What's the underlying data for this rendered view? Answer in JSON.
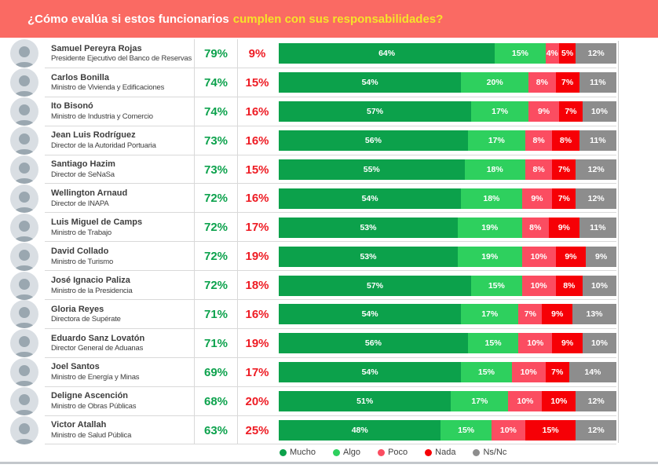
{
  "header": {
    "question_prefix": "¿Cómo evalúa si estos funcionarios",
    "question_highlight": "cumplen con sus responsabilidades?"
  },
  "colors": {
    "header_bg": "#fa6a63",
    "highlight_text": "#f6e32a",
    "approval_text": "#0da24d",
    "disapproval_text": "#ee1c24",
    "row_divider": "#d9d9d9"
  },
  "legend": [
    {
      "label": "Mucho",
      "color": "#0ca14b"
    },
    {
      "label": "Algo",
      "color": "#2ed05e"
    },
    {
      "label": "Poco",
      "color": "#fb4d61"
    },
    {
      "label": "Nada",
      "color": "#f60006"
    },
    {
      "label": "Ns/Nc",
      "color": "#8d8d8d"
    }
  ],
  "officials": [
    {
      "name": "Samuel Pereyra Rojas",
      "title": "Presidente Ejecutivo del Banco de Reservas",
      "approve": "79%",
      "disapprove": "9%",
      "segments": [
        64,
        15,
        4,
        5,
        12
      ]
    },
    {
      "name": "Carlos Bonilla",
      "title": "Ministro de Vivienda y Edificaciones",
      "approve": "74%",
      "disapprove": "15%",
      "segments": [
        54,
        20,
        8,
        7,
        11
      ]
    },
    {
      "name": "Ito Bisonó",
      "title": "Ministro de Industria y Comercio",
      "approve": "74%",
      "disapprove": "16%",
      "segments": [
        57,
        17,
        9,
        7,
        10
      ]
    },
    {
      "name": "Jean Luis Rodríguez",
      "title": "Director de la Autoridad Portuaria",
      "approve": "73%",
      "disapprove": "16%",
      "segments": [
        56,
        17,
        8,
        8,
        11
      ]
    },
    {
      "name": "Santiago Hazim",
      "title": "Director de SeNaSa",
      "approve": "73%",
      "disapprove": "15%",
      "segments": [
        55,
        18,
        8,
        7,
        12
      ]
    },
    {
      "name": "Wellington Arnaud",
      "title": "Director de INAPA",
      "approve": "72%",
      "disapprove": "16%",
      "segments": [
        54,
        18,
        9,
        7,
        12
      ]
    },
    {
      "name": "Luis Miguel de Camps",
      "title": "Ministro de Trabajo",
      "approve": "72%",
      "disapprove": "17%",
      "segments": [
        53,
        19,
        8,
        9,
        11
      ]
    },
    {
      "name": "David Collado",
      "title": "Ministro de Turismo",
      "approve": "72%",
      "disapprove": "19%",
      "segments": [
        53,
        19,
        10,
        9,
        9
      ]
    },
    {
      "name": "José Ignacio Paliza",
      "title": "Ministro de la Presidencia",
      "approve": "72%",
      "disapprove": "18%",
      "segments": [
        57,
        15,
        10,
        8,
        10
      ]
    },
    {
      "name": "Gloria Reyes",
      "title": "Directora de Supérate",
      "approve": "71%",
      "disapprove": "16%",
      "segments": [
        54,
        17,
        7,
        9,
        13
      ]
    },
    {
      "name": "Eduardo Sanz Lovatón",
      "title": "Director General de Aduanas",
      "approve": "71%",
      "disapprove": "19%",
      "segments": [
        56,
        15,
        10,
        9,
        10
      ]
    },
    {
      "name": "Joel Santos",
      "title": "Ministro de Energía y Minas",
      "approve": "69%",
      "disapprove": "17%",
      "segments": [
        54,
        15,
        10,
        7,
        14
      ]
    },
    {
      "name": "Deligne Ascención",
      "title": "Ministro de Obras Públicas",
      "approve": "68%",
      "disapprove": "20%",
      "segments": [
        51,
        17,
        10,
        10,
        12
      ]
    },
    {
      "name": "Victor Atallah",
      "title": "Ministro de Salud Pública",
      "approve": "63%",
      "disapprove": "25%",
      "segments": [
        48,
        15,
        10,
        15,
        12
      ]
    }
  ],
  "chart_data": {
    "type": "bar",
    "stacked": true,
    "orientation": "horizontal",
    "title": "¿Cómo evalúa si estos funcionarios cumplen con sus responsabilidades?",
    "categories": [
      "Samuel Pereyra Rojas",
      "Carlos Bonilla",
      "Ito Bisonó",
      "Jean Luis Rodríguez",
      "Santiago Hazim",
      "Wellington Arnaud",
      "Luis Miguel de Camps",
      "David Collado",
      "José Ignacio Paliza",
      "Gloria Reyes",
      "Eduardo Sanz Lovatón",
      "Joel Santos",
      "Deligne Ascención",
      "Victor Atallah"
    ],
    "series": [
      {
        "name": "Mucho",
        "color": "#0ca14b",
        "values": [
          64,
          54,
          57,
          56,
          55,
          54,
          53,
          53,
          57,
          54,
          56,
          54,
          51,
          48
        ]
      },
      {
        "name": "Algo",
        "color": "#2ed05e",
        "values": [
          15,
          20,
          17,
          17,
          18,
          18,
          19,
          19,
          15,
          17,
          15,
          15,
          17,
          15
        ]
      },
      {
        "name": "Poco",
        "color": "#fb4d61",
        "values": [
          4,
          8,
          9,
          8,
          8,
          9,
          8,
          10,
          10,
          7,
          10,
          10,
          10,
          10
        ]
      },
      {
        "name": "Nada",
        "color": "#f60006",
        "values": [
          5,
          7,
          7,
          8,
          7,
          7,
          9,
          9,
          8,
          9,
          9,
          7,
          10,
          15
        ]
      },
      {
        "name": "Ns/Nc",
        "color": "#8d8d8d",
        "values": [
          12,
          11,
          10,
          11,
          12,
          12,
          11,
          9,
          10,
          13,
          10,
          14,
          12,
          12
        ]
      }
    ],
    "xlim": [
      0,
      100
    ],
    "legend_position": "bottom",
    "value_labels": "percent"
  }
}
